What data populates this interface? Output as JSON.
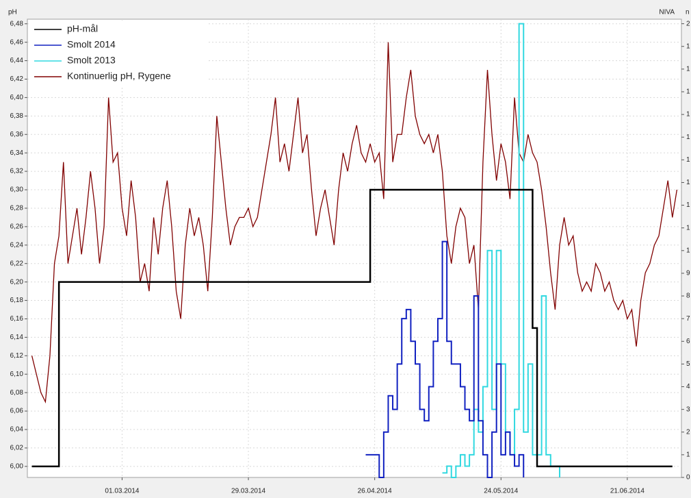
{
  "chart_data": {
    "type": "line",
    "ylabel": "pH",
    "y2label": "n",
    "annotation": "NIVA",
    "legend": "upper left",
    "grid": true,
    "xlim": [
      "2014-02-08",
      "2014-07-03"
    ],
    "xticks": [
      {
        "value": "2014-03-01",
        "label": "01.03.2014"
      },
      {
        "value": "2014-03-29",
        "label": "29.03.2014"
      },
      {
        "value": "2014-04-26",
        "label": "26.04.2014"
      },
      {
        "value": "2014-05-24",
        "label": "24.05.2014"
      },
      {
        "value": "2014-06-21",
        "label": "21.06.2014"
      }
    ],
    "ylim": [
      5.988,
      6.485
    ],
    "yticks": [
      {
        "value": 6.0,
        "label": "6,00"
      },
      {
        "value": 6.02,
        "label": "6,02"
      },
      {
        "value": 6.04,
        "label": "6,04"
      },
      {
        "value": 6.06,
        "label": "6,06"
      },
      {
        "value": 6.08,
        "label": "6,08"
      },
      {
        "value": 6.1,
        "label": "6,10"
      },
      {
        "value": 6.12,
        "label": "6,12"
      },
      {
        "value": 6.14,
        "label": "6,14"
      },
      {
        "value": 6.16,
        "label": "6,16"
      },
      {
        "value": 6.18,
        "label": "6,18"
      },
      {
        "value": 6.2,
        "label": "6,20"
      },
      {
        "value": 6.22,
        "label": "6,22"
      },
      {
        "value": 6.24,
        "label": "6,24"
      },
      {
        "value": 6.26,
        "label": "6,26"
      },
      {
        "value": 6.28,
        "label": "6,28"
      },
      {
        "value": 6.3,
        "label": "6,30"
      },
      {
        "value": 6.32,
        "label": "6,32"
      },
      {
        "value": 6.34,
        "label": "6,34"
      },
      {
        "value": 6.36,
        "label": "6,36"
      },
      {
        "value": 6.38,
        "label": "6,38"
      },
      {
        "value": 6.4,
        "label": "6,40"
      },
      {
        "value": 6.42,
        "label": "6,42"
      },
      {
        "value": 6.44,
        "label": "6,44"
      },
      {
        "value": 6.46,
        "label": "6,46"
      },
      {
        "value": 6.48,
        "label": "6,48"
      }
    ],
    "y2lim": [
      0,
      20.2
    ],
    "y2ticks": [
      0,
      1,
      2,
      3,
      4,
      5,
      6,
      7,
      8,
      9,
      {
        "value": 10,
        "label": "1"
      },
      {
        "value": 11,
        "label": "1"
      },
      {
        "value": 12,
        "label": "1"
      },
      {
        "value": 13,
        "label": "1"
      },
      {
        "value": 14,
        "label": "1"
      },
      {
        "value": 15,
        "label": "1"
      },
      {
        "value": 16,
        "label": "1"
      },
      {
        "value": 17,
        "label": "1"
      },
      {
        "value": 18,
        "label": "1"
      },
      {
        "value": 19,
        "label": "1"
      },
      {
        "value": 20,
        "label": "2"
      }
    ],
    "series": [
      {
        "name": "pH-mål",
        "color": "#000000",
        "drawstyle": "steps-post",
        "x": [
          "2014-02-09",
          "2014-02-15",
          "2014-04-25",
          "2014-05-31",
          "2014-06-01",
          "2014-07-01"
        ],
        "values": [
          6.0,
          6.2,
          6.3,
          6.15,
          6.0,
          6.0
        ]
      },
      {
        "name": "Smolt 2014",
        "color": "#1020c0",
        "axis": "y2",
        "drawstyle": "steps-post",
        "x": [
          "2014-04-24",
          "2014-04-25",
          "2014-04-26",
          "2014-04-27",
          "2014-04-28",
          "2014-04-29",
          "2014-04-30",
          "2014-05-01",
          "2014-05-02",
          "2014-05-03",
          "2014-05-04",
          "2014-05-05",
          "2014-05-06",
          "2014-05-07",
          "2014-05-08",
          "2014-05-09",
          "2014-05-10",
          "2014-05-11",
          "2014-05-12",
          "2014-05-13",
          "2014-05-14",
          "2014-05-15",
          "2014-05-16",
          "2014-05-17",
          "2014-05-18",
          "2014-05-19",
          "2014-05-20",
          "2014-05-21",
          "2014-05-22",
          "2014-05-23",
          "2014-05-24",
          "2014-05-25",
          "2014-05-26",
          "2014-05-27",
          "2014-05-28",
          "2014-05-29"
        ],
        "values": [
          1,
          1,
          1,
          0,
          2,
          3.6,
          3,
          5,
          7,
          7.4,
          6,
          5,
          3,
          2.5,
          4,
          6,
          7,
          10.4,
          6,
          5,
          5,
          4,
          3,
          2.5,
          8,
          2.5,
          1,
          0,
          2,
          5,
          1,
          2,
          1,
          0.5,
          1,
          0
        ]
      },
      {
        "name": "Smolt 2013",
        "color": "#30d8e0",
        "axis": "y2",
        "drawstyle": "steps-post",
        "x": [
          "2014-05-11",
          "2014-05-12",
          "2014-05-13",
          "2014-05-14",
          "2014-05-15",
          "2014-05-16",
          "2014-05-17",
          "2014-05-18",
          "2014-05-19",
          "2014-05-20",
          "2014-05-21",
          "2014-05-22",
          "2014-05-23",
          "2014-05-24",
          "2014-05-25",
          "2014-05-26",
          "2014-05-27",
          "2014-05-28",
          "2014-05-29",
          "2014-05-30",
          "2014-05-31",
          "2014-06-01",
          "2014-06-02",
          "2014-06-03",
          "2014-06-04",
          "2014-06-05",
          "2014-06-06"
        ],
        "values": [
          0.2,
          0.5,
          0,
          0.5,
          1,
          0.5,
          1,
          3,
          2,
          4,
          10,
          3,
          10,
          5,
          2,
          1,
          3,
          20,
          2,
          5,
          1,
          1,
          8,
          1,
          0.5,
          0.5,
          0
        ]
      },
      {
        "name": "Kontinuerlig pH, Rygene",
        "color": "#800000",
        "x": [
          "2014-02-09",
          "2014-02-10",
          "2014-02-11",
          "2014-02-12",
          "2014-02-13",
          "2014-02-14",
          "2014-02-15",
          "2014-02-16",
          "2014-02-17",
          "2014-02-18",
          "2014-02-19",
          "2014-02-20",
          "2014-02-21",
          "2014-02-22",
          "2014-02-23",
          "2014-02-24",
          "2014-02-25",
          "2014-02-26",
          "2014-02-27",
          "2014-02-28",
          "2014-03-01",
          "2014-03-02",
          "2014-03-03",
          "2014-03-04",
          "2014-03-05",
          "2014-03-06",
          "2014-03-07",
          "2014-03-08",
          "2014-03-09",
          "2014-03-10",
          "2014-03-11",
          "2014-03-12",
          "2014-03-13",
          "2014-03-14",
          "2014-03-15",
          "2014-03-16",
          "2014-03-17",
          "2014-03-18",
          "2014-03-19",
          "2014-03-20",
          "2014-03-21",
          "2014-03-22",
          "2014-03-23",
          "2014-03-24",
          "2014-03-25",
          "2014-03-26",
          "2014-03-27",
          "2014-03-28",
          "2014-03-29",
          "2014-03-30",
          "2014-03-31",
          "2014-04-01",
          "2014-04-02",
          "2014-04-03",
          "2014-04-04",
          "2014-04-05",
          "2014-04-06",
          "2014-04-07",
          "2014-04-08",
          "2014-04-09",
          "2014-04-10",
          "2014-04-11",
          "2014-04-12",
          "2014-04-13",
          "2014-04-14",
          "2014-04-15",
          "2014-04-16",
          "2014-04-17",
          "2014-04-18",
          "2014-04-19",
          "2014-04-20",
          "2014-04-21",
          "2014-04-22",
          "2014-04-23",
          "2014-04-24",
          "2014-04-25",
          "2014-04-26",
          "2014-04-27",
          "2014-04-28",
          "2014-04-29",
          "2014-04-30",
          "2014-05-01",
          "2014-05-02",
          "2014-05-03",
          "2014-05-04",
          "2014-05-05",
          "2014-05-06",
          "2014-05-07",
          "2014-05-08",
          "2014-05-09",
          "2014-05-10",
          "2014-05-11",
          "2014-05-12",
          "2014-05-13",
          "2014-05-14",
          "2014-05-15",
          "2014-05-16",
          "2014-05-17",
          "2014-05-18",
          "2014-05-19",
          "2014-05-20",
          "2014-05-21",
          "2014-05-22",
          "2014-05-23",
          "2014-05-24",
          "2014-05-25",
          "2014-05-26",
          "2014-05-27",
          "2014-05-28",
          "2014-05-29",
          "2014-05-30",
          "2014-05-31",
          "2014-06-01",
          "2014-06-02",
          "2014-06-03",
          "2014-06-04",
          "2014-06-05",
          "2014-06-06",
          "2014-06-07",
          "2014-06-08",
          "2014-06-09",
          "2014-06-10",
          "2014-06-11",
          "2014-06-12",
          "2014-06-13",
          "2014-06-14",
          "2014-06-15",
          "2014-06-16",
          "2014-06-17",
          "2014-06-18",
          "2014-06-19",
          "2014-06-20",
          "2014-06-21",
          "2014-06-22",
          "2014-06-23",
          "2014-06-24",
          "2014-06-25",
          "2014-06-26",
          "2014-06-27",
          "2014-06-28",
          "2014-06-29",
          "2014-06-30",
          "2014-07-01",
          "2014-07-02"
        ],
        "values": [
          6.12,
          6.1,
          6.08,
          6.07,
          6.12,
          6.22,
          6.25,
          6.33,
          6.22,
          6.25,
          6.28,
          6.23,
          6.27,
          6.32,
          6.28,
          6.22,
          6.26,
          6.4,
          6.33,
          6.34,
          6.28,
          6.25,
          6.31,
          6.27,
          6.2,
          6.22,
          6.19,
          6.27,
          6.23,
          6.28,
          6.31,
          6.26,
          6.19,
          6.16,
          6.24,
          6.28,
          6.25,
          6.27,
          6.24,
          6.19,
          6.27,
          6.38,
          6.33,
          6.28,
          6.24,
          6.26,
          6.27,
          6.27,
          6.28,
          6.26,
          6.27,
          6.3,
          6.33,
          6.36,
          6.4,
          6.33,
          6.35,
          6.32,
          6.36,
          6.4,
          6.34,
          6.36,
          6.3,
          6.25,
          6.28,
          6.3,
          6.27,
          6.24,
          6.3,
          6.34,
          6.32,
          6.35,
          6.37,
          6.34,
          6.33,
          6.35,
          6.33,
          6.34,
          6.29,
          6.46,
          6.33,
          6.36,
          6.36,
          6.4,
          6.43,
          6.38,
          6.36,
          6.35,
          6.36,
          6.34,
          6.36,
          6.32,
          6.25,
          6.22,
          6.26,
          6.28,
          6.27,
          6.22,
          6.24,
          6.17,
          6.33,
          6.43,
          6.36,
          6.31,
          6.35,
          6.33,
          6.29,
          6.4,
          6.34,
          6.33,
          6.36,
          6.34,
          6.33,
          6.3,
          6.26,
          6.21,
          6.17,
          6.24,
          6.27,
          6.24,
          6.25,
          6.21,
          6.19,
          6.2,
          6.19,
          6.22,
          6.21,
          6.19,
          6.2,
          6.18,
          6.17,
          6.18,
          6.16,
          6.17,
          6.13,
          6.18,
          6.21,
          6.22,
          6.24,
          6.25,
          6.28,
          6.31,
          6.27,
          6.3
        ]
      }
    ]
  }
}
